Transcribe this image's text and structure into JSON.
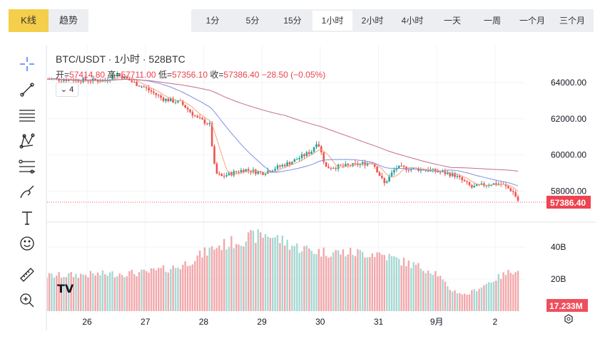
{
  "chart_types": [
    {
      "label": "K线",
      "active": true
    },
    {
      "label": "趋势",
      "active": false
    }
  ],
  "intervals": [
    {
      "label": "1分"
    },
    {
      "label": "5分"
    },
    {
      "label": "15分"
    },
    {
      "label": "1小时",
      "active": true
    },
    {
      "label": "2小时"
    },
    {
      "label": "4小时"
    },
    {
      "label": "一天"
    },
    {
      "label": "一周"
    },
    {
      "label": "一个月"
    },
    {
      "label": "三个月"
    }
  ],
  "tools": [
    "crosshair-icon",
    "trend-line-icon",
    "horizontal-lines-icon",
    "pattern-icon",
    "fib-icon",
    "brush-icon",
    "text-icon",
    "emoji-icon",
    "ruler-icon",
    "zoom-in-icon"
  ],
  "legend": {
    "title": "BTC/USDT · 1小时 · 528BTC",
    "open_label": "开=",
    "open": "57414.80",
    "high_label": "高=",
    "high": "57711.00",
    "low_label": "低=",
    "low": "57356.10",
    "close_label": "收=",
    "close": "57386.40",
    "change": "−28.50 (−0.05%)",
    "indicators_count": "4"
  },
  "colors": {
    "up": "#26a69a",
    "down": "#ef5350",
    "ma1": "#f4a57c",
    "ma2": "#7d8fe0",
    "ma3": "#c86b8c"
  },
  "chart_data": {
    "type": "candlestick",
    "price_ticks": [
      "64000.00",
      "62000.00",
      "60000.00",
      "58000.00"
    ],
    "price_tick_values": [
      64000,
      62000,
      60000,
      58000
    ],
    "current_price": "57386.40",
    "volume_ticks": [
      "40B",
      "20B"
    ],
    "volume_tick_values": [
      40,
      20
    ],
    "current_volume": "17.233M",
    "x_labels": [
      "26",
      "27",
      "28",
      "29",
      "30",
      "31",
      "9月",
      "2"
    ],
    "price_path_days_from_26": [
      [
        -0.69,
        64200
      ],
      [
        0.3,
        64100
      ],
      [
        0.5,
        64500
      ],
      [
        0.8,
        64000
      ],
      [
        1.0,
        63700
      ],
      [
        1.3,
        63100
      ],
      [
        1.6,
        62900
      ],
      [
        1.9,
        62000
      ],
      [
        2.1,
        61700
      ],
      [
        2.2,
        59000
      ],
      [
        2.3,
        58800
      ],
      [
        2.7,
        59200
      ],
      [
        3.0,
        59000
      ],
      [
        3.5,
        59600
      ],
      [
        3.85,
        60200
      ],
      [
        3.95,
        60800
      ],
      [
        4.1,
        59300
      ],
      [
        4.5,
        59400
      ],
      [
        4.9,
        59600
      ],
      [
        5.1,
        58400
      ],
      [
        5.3,
        59300
      ],
      [
        5.8,
        59200
      ],
      [
        6.3,
        58900
      ],
      [
        6.6,
        58200
      ],
      [
        6.9,
        58400
      ],
      [
        7.1,
        58400
      ],
      [
        7.3,
        58000
      ],
      [
        7.41,
        57386
      ]
    ],
    "volume_path_B": [
      [
        -0.69,
        22
      ],
      [
        1.0,
        24
      ],
      [
        1.6,
        28
      ],
      [
        2.2,
        40
      ],
      [
        2.8,
        46
      ],
      [
        3.1,
        48
      ],
      [
        3.6,
        40
      ],
      [
        4.0,
        37
      ],
      [
        5.0,
        36
      ],
      [
        5.5,
        30
      ],
      [
        6.0,
        24
      ],
      [
        6.2,
        14
      ],
      [
        6.5,
        10
      ],
      [
        7.0,
        20
      ],
      [
        7.4,
        27
      ]
    ]
  }
}
